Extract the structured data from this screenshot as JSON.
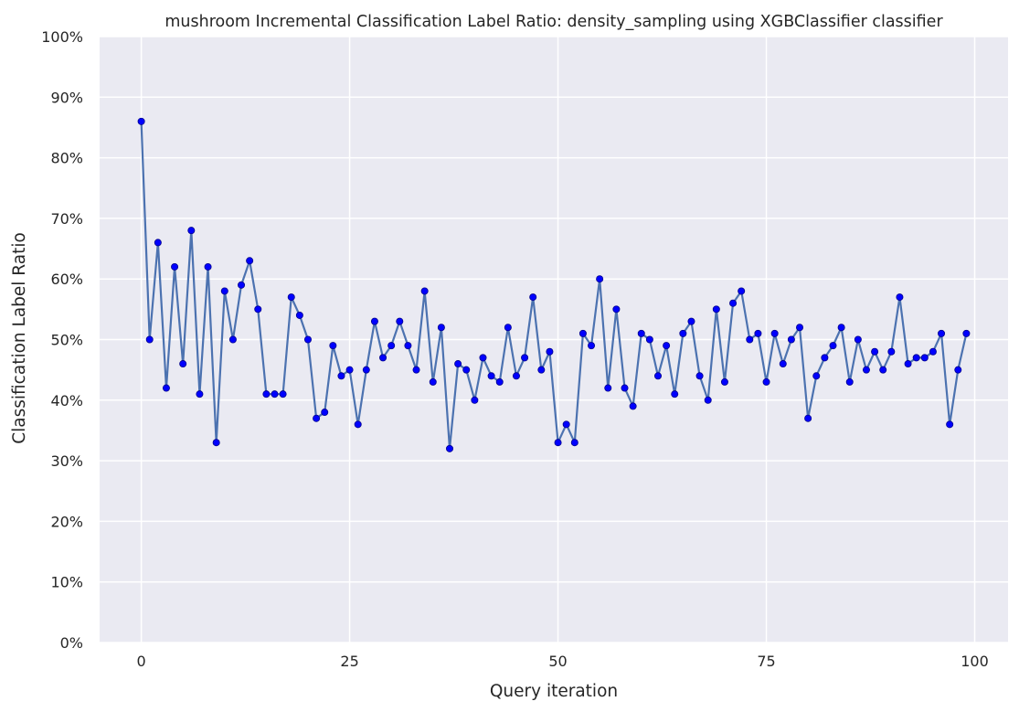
{
  "chart_data": {
    "type": "line",
    "title": "mushroom Incremental Classification Label Ratio: density_sampling using XGBClassifier classifier",
    "xlabel": "Query iteration",
    "ylabel": "Classification Label Ratio",
    "xlim": [
      -5,
      104
    ],
    "ylim": [
      0,
      1
    ],
    "x_ticks": [
      0,
      25,
      50,
      75,
      100
    ],
    "x_tick_labels": [
      "0",
      "25",
      "50",
      "75",
      "100"
    ],
    "y_ticks": [
      0,
      0.1,
      0.2,
      0.3,
      0.4,
      0.5,
      0.6,
      0.7,
      0.8,
      0.9,
      1.0
    ],
    "y_tick_labels": [
      "0%",
      "10%",
      "20%",
      "30%",
      "40%",
      "50%",
      "60%",
      "70%",
      "80%",
      "90%",
      "100%"
    ],
    "grid": true,
    "colors": {
      "background": "#eaeaf2",
      "grid": "#ffffff",
      "line": "#4c72b0",
      "marker": "#0000ff",
      "marker_edge": "#00008b"
    },
    "x": [
      0,
      1,
      2,
      3,
      4,
      5,
      6,
      7,
      8,
      9,
      10,
      11,
      12,
      13,
      14,
      15,
      16,
      17,
      18,
      19,
      20,
      21,
      22,
      23,
      24,
      25,
      26,
      27,
      28,
      29,
      30,
      31,
      32,
      33,
      34,
      35,
      36,
      37,
      38,
      39,
      40,
      41,
      42,
      43,
      44,
      45,
      46,
      47,
      48,
      49,
      50,
      51,
      52,
      53,
      54,
      55,
      56,
      57,
      58,
      59,
      60,
      61,
      62,
      63,
      64,
      65,
      66,
      67,
      68,
      69,
      70,
      71,
      72,
      73,
      74,
      75,
      76,
      77,
      78,
      79,
      80,
      81,
      82,
      83,
      84,
      85,
      86,
      87,
      88,
      89,
      90,
      91,
      92,
      93,
      94,
      95,
      96,
      97,
      98,
      99
    ],
    "values": [
      0.86,
      0.5,
      0.66,
      0.42,
      0.62,
      0.46,
      0.68,
      0.41,
      0.62,
      0.33,
      0.58,
      0.5,
      0.59,
      0.63,
      0.55,
      0.41,
      0.41,
      0.41,
      0.57,
      0.54,
      0.5,
      0.37,
      0.38,
      0.49,
      0.44,
      0.45,
      0.36,
      0.45,
      0.53,
      0.47,
      0.49,
      0.53,
      0.49,
      0.45,
      0.58,
      0.43,
      0.52,
      0.32,
      0.46,
      0.45,
      0.4,
      0.47,
      0.44,
      0.43,
      0.52,
      0.44,
      0.47,
      0.57,
      0.45,
      0.48,
      0.33,
      0.36,
      0.33,
      0.51,
      0.49,
      0.6,
      0.42,
      0.55,
      0.42,
      0.39,
      0.51,
      0.5,
      0.44,
      0.49,
      0.41,
      0.51,
      0.53,
      0.44,
      0.4,
      0.55,
      0.43,
      0.56,
      0.58,
      0.5,
      0.51,
      0.43,
      0.51,
      0.46,
      0.5,
      0.52,
      0.37,
      0.44,
      0.47,
      0.49,
      0.52,
      0.43,
      0.5,
      0.45,
      0.48,
      0.45,
      0.48,
      0.57,
      0.46,
      0.47,
      0.47,
      0.48,
      0.51,
      0.36,
      0.45,
      0.51
    ]
  }
}
